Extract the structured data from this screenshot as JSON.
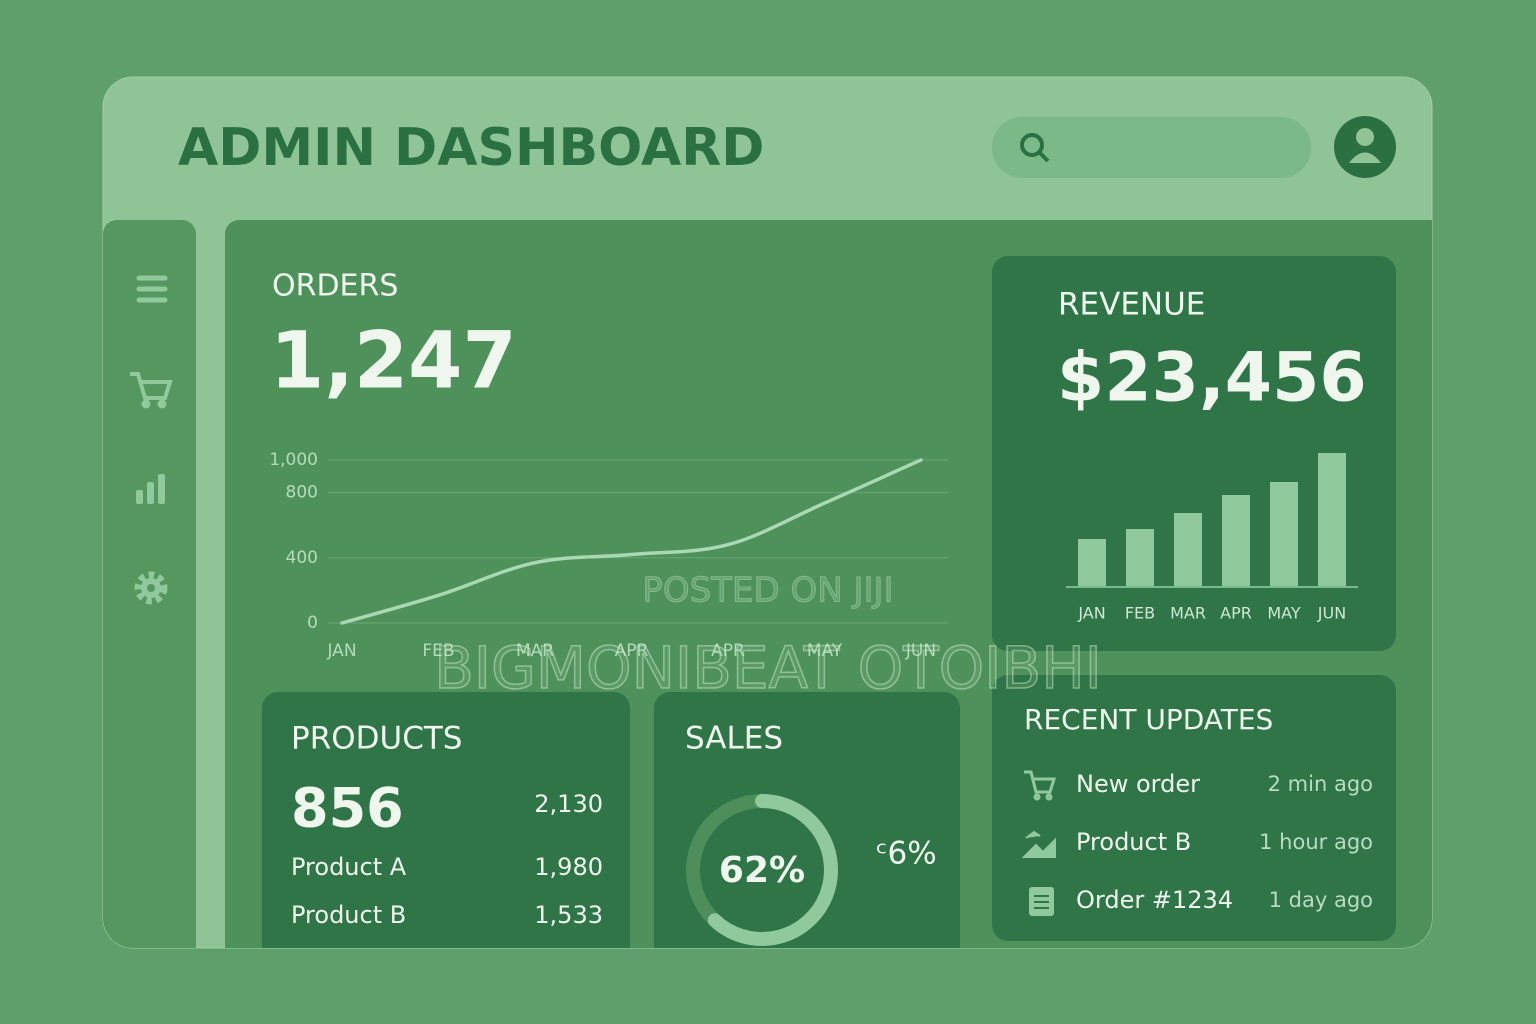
{
  "header": {
    "title": "ADMIN DASHBOARD"
  },
  "orders": {
    "title": "ORDERS",
    "value": "1,247",
    "chart_data": {
      "type": "line",
      "categories": [
        "JAN",
        "FEB",
        "MAR",
        "APR",
        "APR",
        "MAY",
        "JUN"
      ],
      "values": [
        0,
        170,
        370,
        420,
        480,
        735,
        1000
      ],
      "color": "#a9d9b2",
      "ylim": [
        0,
        1150
      ],
      "yticks": [
        0,
        400,
        800,
        {
          "value": 1000,
          "label": "1,000"
        }
      ],
      "grid": true
    }
  },
  "revenue": {
    "title": "REVENUE",
    "value": "$23,456",
    "chart_data": {
      "type": "bar",
      "categories": [
        "JAN",
        "FEB",
        "MAR",
        "APR",
        "MAY",
        "JUN"
      ],
      "values": [
        48,
        58,
        74,
        92,
        105,
        134
      ],
      "color": "#8fc99c",
      "ylim": [
        0,
        140
      ]
    }
  },
  "products": {
    "title": "PRODUCTS",
    "rows": [
      [
        "856",
        "2,130"
      ],
      [
        "Product A",
        "1,980"
      ],
      [
        "Product B",
        "1,533"
      ]
    ]
  },
  "sales": {
    "title": "SALES",
    "side_label": "ᶜ6%",
    "chart_data": {
      "type": "donut",
      "values": [
        62
      ],
      "value_labels": [
        "62%"
      ],
      "ylim": [
        0,
        100
      ],
      "color": "#8fc99c"
    }
  },
  "updates": {
    "title": "RECENT UPDATES",
    "items": [
      {
        "text": "New order",
        "time": "2 min ago"
      },
      {
        "text": "Product B",
        "time": "1 hour ago"
      },
      {
        "text": "Order #1234",
        "time": "1 day ago"
      }
    ]
  },
  "watermark": [
    "POSTED ON JIJI",
    "BIGMONIBEAT OTOIBHI"
  ]
}
